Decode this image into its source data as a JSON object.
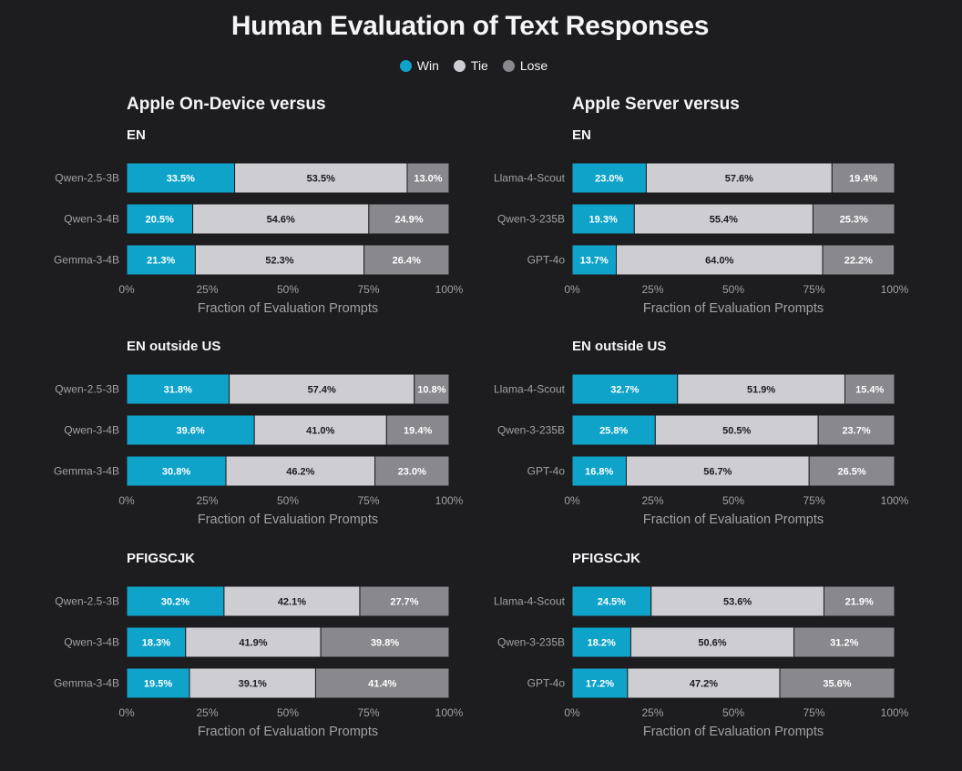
{
  "title": "Human Evaluation of Text Responses",
  "legend": [
    {
      "label": "Win",
      "color": "#0fa3c9"
    },
    {
      "label": "Tie",
      "color": "#cdcdd2"
    },
    {
      "label": "Lose",
      "color": "#88888d"
    }
  ],
  "columns": [
    {
      "heading": "Apple On-Device versus"
    },
    {
      "heading": "Apple Server versus"
    }
  ],
  "chart_data": [
    {
      "type": "bar",
      "stacked": true,
      "orientation": "horizontal",
      "group": "Apple On-Device versus",
      "subtitle": "EN",
      "categories": [
        "Qwen-2.5-3B",
        "Qwen-3-4B",
        "Gemma-3-4B"
      ],
      "series": [
        {
          "name": "Win",
          "values": [
            33.5,
            20.5,
            21.3
          ]
        },
        {
          "name": "Tie",
          "values": [
            53.5,
            54.6,
            52.3
          ]
        },
        {
          "name": "Lose",
          "values": [
            13.0,
            24.9,
            26.4
          ]
        }
      ],
      "xlabel": "Fraction of Evaluation Prompts",
      "xticks": [
        "0%",
        "25%",
        "50%",
        "75%",
        "100%"
      ],
      "xlim": [
        0,
        100
      ]
    },
    {
      "type": "bar",
      "stacked": true,
      "orientation": "horizontal",
      "group": "Apple Server versus",
      "subtitle": "EN",
      "categories": [
        "Llama-4-Scout",
        "Qwen-3-235B",
        "GPT-4o"
      ],
      "series": [
        {
          "name": "Win",
          "values": [
            23.0,
            19.3,
            13.7
          ]
        },
        {
          "name": "Tie",
          "values": [
            57.6,
            55.4,
            64.0
          ]
        },
        {
          "name": "Lose",
          "values": [
            19.4,
            25.3,
            22.2
          ]
        }
      ],
      "xlabel": "Fraction of Evaluation Prompts",
      "xticks": [
        "0%",
        "25%",
        "50%",
        "75%",
        "100%"
      ],
      "xlim": [
        0,
        100
      ]
    },
    {
      "type": "bar",
      "stacked": true,
      "orientation": "horizontal",
      "group": "Apple On-Device versus",
      "subtitle": "EN outside US",
      "categories": [
        "Qwen-2.5-3B",
        "Qwen-3-4B",
        "Gemma-3-4B"
      ],
      "series": [
        {
          "name": "Win",
          "values": [
            31.8,
            39.6,
            30.8
          ]
        },
        {
          "name": "Tie",
          "values": [
            57.4,
            41.0,
            46.2
          ]
        },
        {
          "name": "Lose",
          "values": [
            10.8,
            19.4,
            23.0
          ]
        }
      ],
      "xlabel": "Fraction of Evaluation Prompts",
      "xticks": [
        "0%",
        "25%",
        "50%",
        "75%",
        "100%"
      ],
      "xlim": [
        0,
        100
      ]
    },
    {
      "type": "bar",
      "stacked": true,
      "orientation": "horizontal",
      "group": "Apple Server versus",
      "subtitle": "EN outside US",
      "categories": [
        "Llama-4-Scout",
        "Qwen-3-235B",
        "GPT-4o"
      ],
      "series": [
        {
          "name": "Win",
          "values": [
            32.7,
            25.8,
            16.8
          ]
        },
        {
          "name": "Tie",
          "values": [
            51.9,
            50.5,
            56.7
          ]
        },
        {
          "name": "Lose",
          "values": [
            15.4,
            23.7,
            26.5
          ]
        }
      ],
      "xlabel": "Fraction of Evaluation Prompts",
      "xticks": [
        "0%",
        "25%",
        "50%",
        "75%",
        "100%"
      ],
      "xlim": [
        0,
        100
      ]
    },
    {
      "type": "bar",
      "stacked": true,
      "orientation": "horizontal",
      "group": "Apple On-Device versus",
      "subtitle": "PFIGSCJK",
      "categories": [
        "Qwen-2.5-3B",
        "Qwen-3-4B",
        "Gemma-3-4B"
      ],
      "series": [
        {
          "name": "Win",
          "values": [
            30.2,
            18.3,
            19.5
          ]
        },
        {
          "name": "Tie",
          "values": [
            42.1,
            41.9,
            39.1
          ]
        },
        {
          "name": "Lose",
          "values": [
            27.7,
            39.8,
            41.4
          ]
        }
      ],
      "xlabel": "Fraction of Evaluation Prompts",
      "xticks": [
        "0%",
        "25%",
        "50%",
        "75%",
        "100%"
      ],
      "xlim": [
        0,
        100
      ]
    },
    {
      "type": "bar",
      "stacked": true,
      "orientation": "horizontal",
      "group": "Apple Server versus",
      "subtitle": "PFIGSCJK",
      "categories": [
        "Llama-4-Scout",
        "Qwen-3-235B",
        "GPT-4o"
      ],
      "series": [
        {
          "name": "Win",
          "values": [
            24.5,
            18.2,
            17.2
          ]
        },
        {
          "name": "Tie",
          "values": [
            53.6,
            50.6,
            47.2
          ]
        },
        {
          "name": "Lose",
          "values": [
            21.9,
            31.2,
            35.6
          ]
        }
      ],
      "xlabel": "Fraction of Evaluation Prompts",
      "xticks": [
        "0%",
        "25%",
        "50%",
        "75%",
        "100%"
      ],
      "xlim": [
        0,
        100
      ]
    }
  ]
}
